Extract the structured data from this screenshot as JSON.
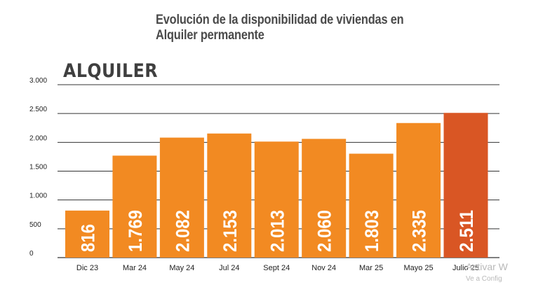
{
  "title_line1": "Evolución de la disponibilidad de viviendas en",
  "title_line2": "Alquiler permanente",
  "panel_label": "ALQUILER",
  "watermark_line1": "Activar W",
  "watermark_line2": "Ve a Config",
  "colors": {
    "bar": "#f28a22",
    "bar_highlight": "#d95624",
    "grid": "#333333",
    "label": "#ffffff",
    "tick": "#222222"
  },
  "chart_data": {
    "type": "bar",
    "title": "Evolución de la disponibilidad de viviendas en Alquiler permanente",
    "categories": [
      "Dic 23",
      "Mar 24",
      "May 24",
      "Jul 24",
      "Sept 24",
      "Nov 24",
      "Mar 25",
      "Mayo 25",
      "Julio 25"
    ],
    "values": [
      816,
      1769,
      2082,
      2153,
      2013,
      2060,
      1803,
      2335,
      2511
    ],
    "value_labels": [
      "816",
      "1.769",
      "2.082",
      "2.153",
      "2.013",
      "2.060",
      "1.803",
      "2.335",
      "2.511"
    ],
    "yticks": [
      0,
      500,
      1000,
      1500,
      2000,
      2500,
      3000
    ],
    "ytick_labels": [
      "0",
      "500",
      "1.000",
      "1.500",
      "2.000",
      "2.500",
      "3.000"
    ],
    "ylim": [
      0,
      3000
    ],
    "highlight_index": 8,
    "grid": true,
    "legend": "none"
  }
}
